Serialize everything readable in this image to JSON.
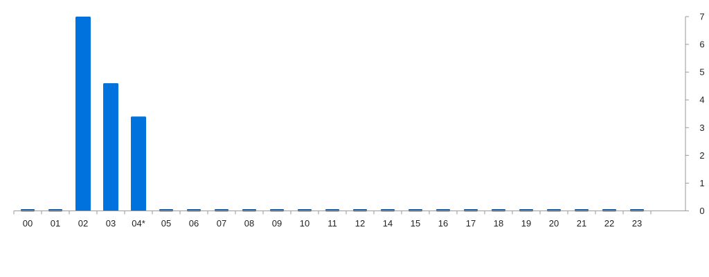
{
  "chart_data": {
    "type": "bar",
    "title": "",
    "xlabel": "",
    "ylabel": "",
    "categories": [
      "00",
      "01",
      "02",
      "03",
      "04*",
      "05",
      "06",
      "07",
      "08",
      "09",
      "10",
      "11",
      "12",
      "14",
      "15",
      "16",
      "17",
      "18",
      "19",
      "20",
      "21",
      "22",
      "23"
    ],
    "values": [
      0,
      0,
      7,
      4.6,
      3.4,
      0,
      0,
      0,
      0,
      0,
      0,
      0,
      0,
      0,
      0,
      0,
      0,
      0,
      0,
      0,
      0,
      0,
      0
    ],
    "ylim": [
      0,
      7
    ],
    "y_axis_position": "right",
    "y_ticks": [
      {
        "value": 0,
        "label": "0"
      },
      {
        "value": 1,
        "label": "1"
      },
      {
        "value": 2,
        "label": "2"
      },
      {
        "value": 3,
        "label": "3"
      },
      {
        "value": 4,
        "label": "4"
      },
      {
        "value": 5,
        "label": "5"
      },
      {
        "value": 6,
        "label": "6"
      },
      {
        "value": 7,
        "label": "7"
      }
    ],
    "grid": false,
    "colors": {
      "bar": "#0072de",
      "zero_marker": "#1d5fa3",
      "axis": "#9a9a9a",
      "text": "#222222"
    }
  }
}
